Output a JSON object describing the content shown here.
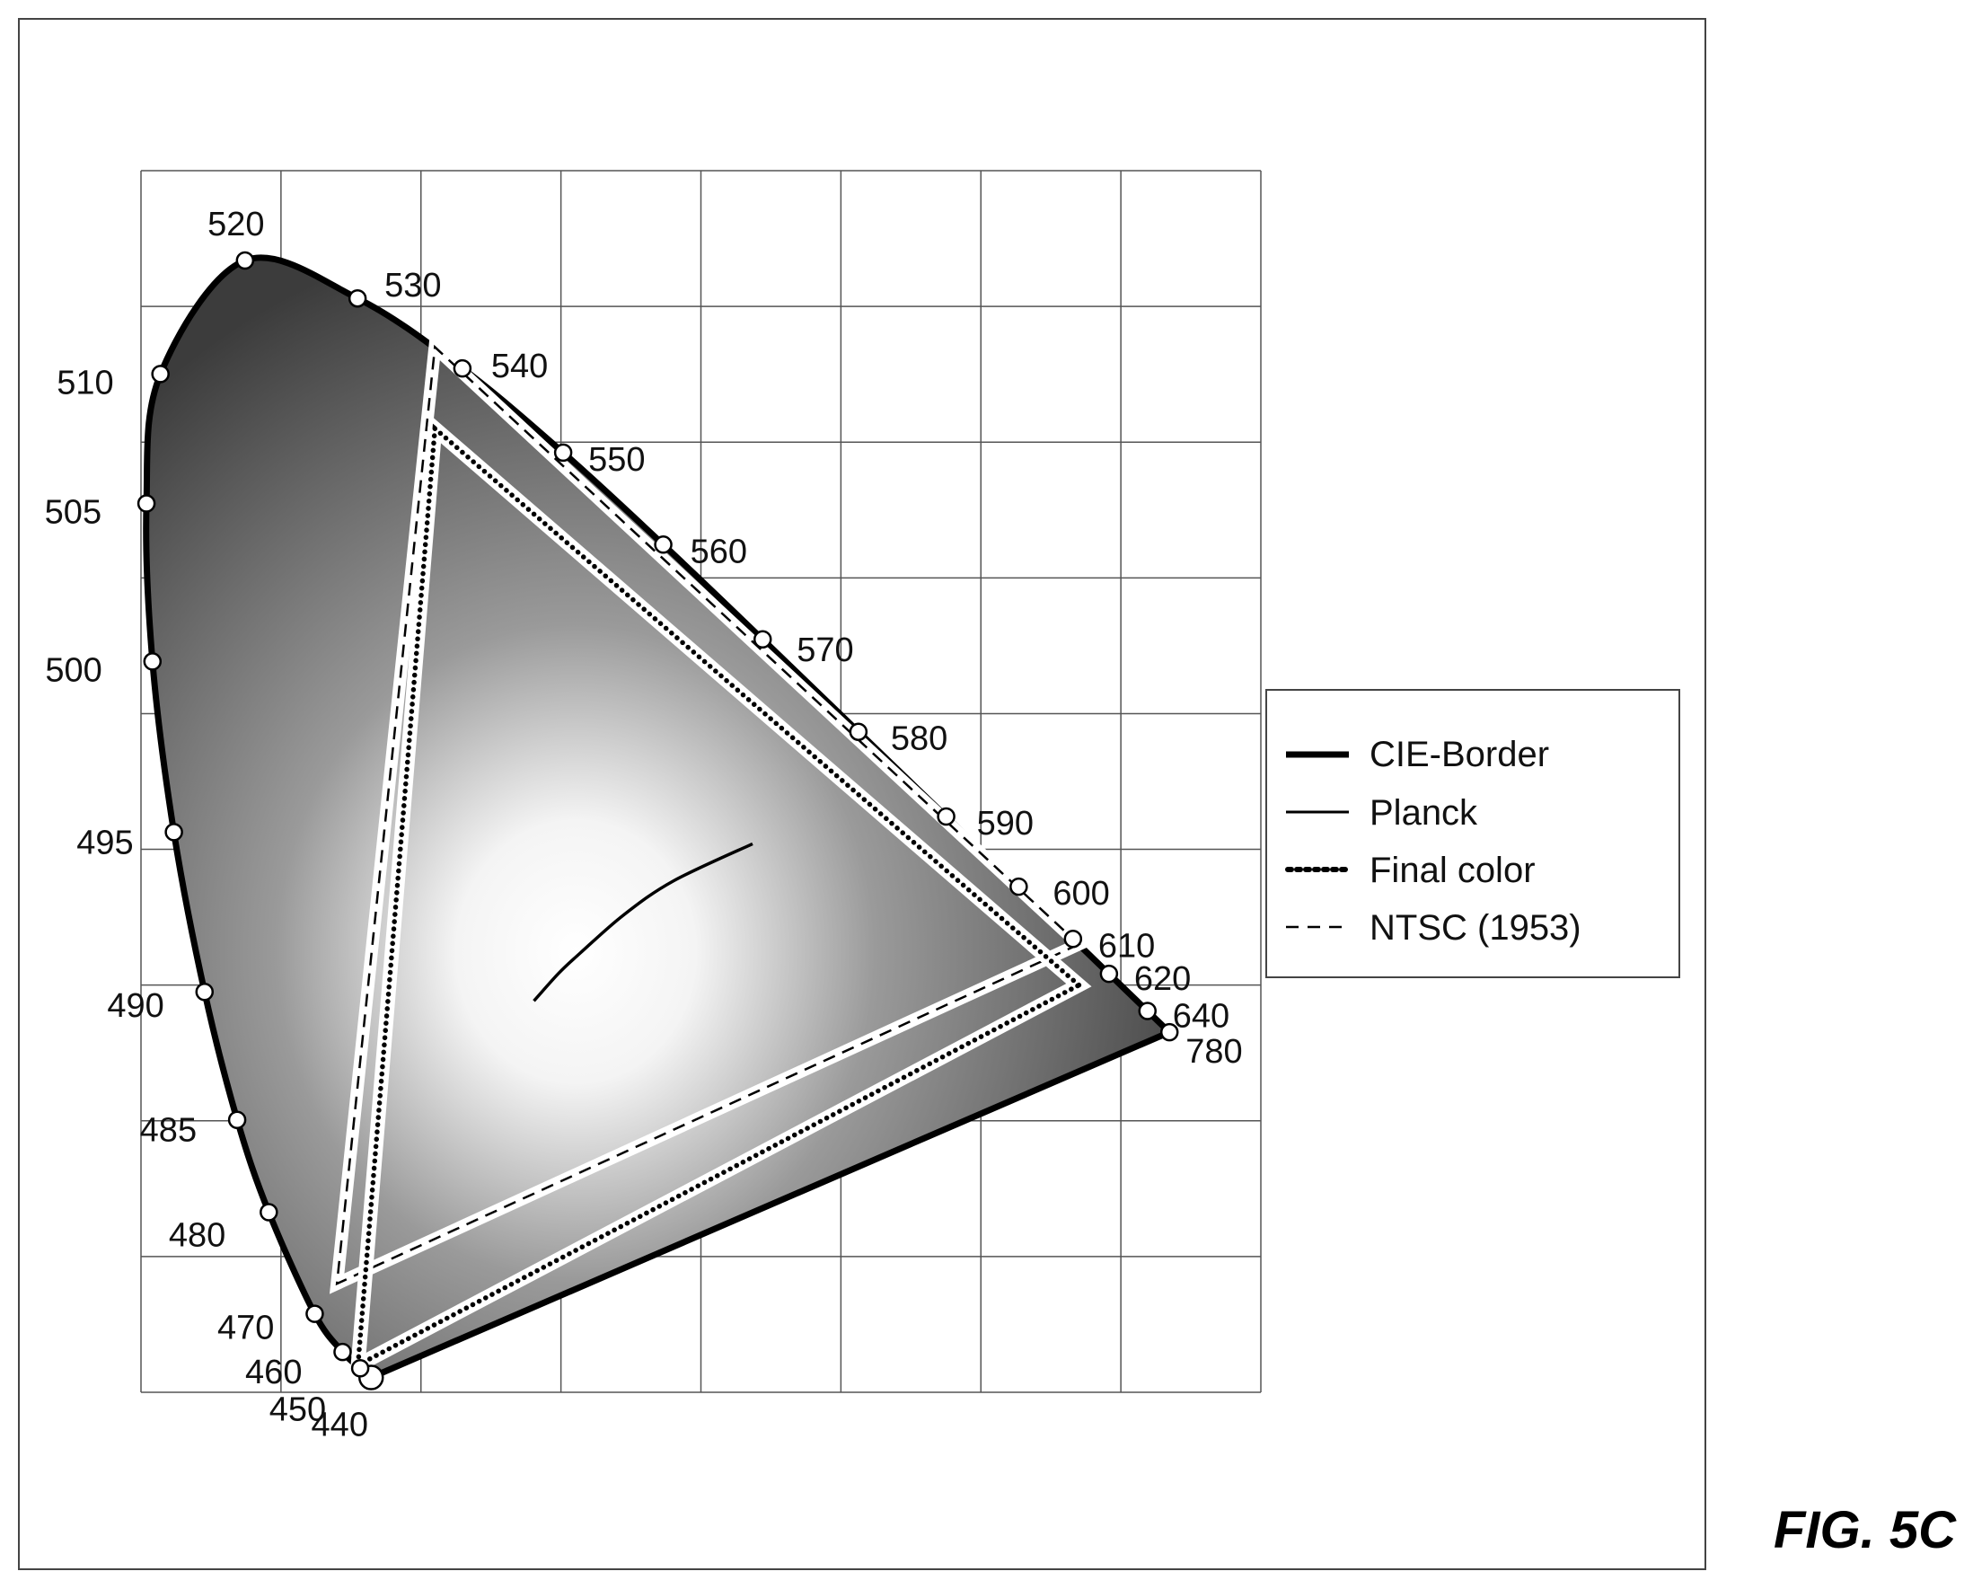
{
  "figure_label": "FIG. 5C",
  "chart_data": {
    "type": "line",
    "grid": true,
    "xlim": [
      0,
      0.8
    ],
    "ylim": [
      0,
      0.9
    ],
    "grid_step": 0.1,
    "colors": {
      "cie_border": "#000000",
      "planck": "#000000",
      "final_color": "#000000",
      "ntsc": "#000000",
      "fill_dark": "#3c3c3c",
      "fill_light": "#ffffff"
    },
    "legend": {
      "position": "right",
      "entries": [
        {
          "label": "CIE-Border",
          "style": "thick-solid"
        },
        {
          "label": "Planck",
          "style": "thin-solid"
        },
        {
          "label": "Final color",
          "style": "dotted"
        },
        {
          "label": "NTSC (1953)",
          "style": "dashed"
        }
      ]
    },
    "spectral_locus": [
      {
        "wl": "440",
        "x": 0.1644,
        "y": 0.0109
      },
      {
        "wl": "450",
        "x": 0.1566,
        "y": 0.0177
      },
      {
        "wl": "460",
        "x": 0.144,
        "y": 0.0297
      },
      {
        "wl": "470",
        "x": 0.1241,
        "y": 0.0578
      },
      {
        "wl": "480",
        "x": 0.0913,
        "y": 0.1327
      },
      {
        "wl": "485",
        "x": 0.0687,
        "y": 0.2007
      },
      {
        "wl": "490",
        "x": 0.0454,
        "y": 0.295
      },
      {
        "wl": "495",
        "x": 0.0235,
        "y": 0.4127
      },
      {
        "wl": "500",
        "x": 0.0082,
        "y": 0.5384
      },
      {
        "wl": "505",
        "x": 0.0039,
        "y": 0.6548
      },
      {
        "wl": "510",
        "x": 0.0139,
        "y": 0.7502
      },
      {
        "wl": "520",
        "x": 0.0743,
        "y": 0.8338
      },
      {
        "wl": "530",
        "x": 0.1547,
        "y": 0.8059
      },
      {
        "wl": "540",
        "x": 0.2296,
        "y": 0.7543
      },
      {
        "wl": "550",
        "x": 0.3016,
        "y": 0.6923
      },
      {
        "wl": "560",
        "x": 0.3731,
        "y": 0.6245
      },
      {
        "wl": "570",
        "x": 0.4441,
        "y": 0.5547
      },
      {
        "wl": "580",
        "x": 0.5125,
        "y": 0.4866
      },
      {
        "wl": "590",
        "x": 0.5752,
        "y": 0.4242
      },
      {
        "wl": "600",
        "x": 0.627,
        "y": 0.3725
      },
      {
        "wl": "610",
        "x": 0.6658,
        "y": 0.334
      },
      {
        "wl": "620",
        "x": 0.6915,
        "y": 0.3083
      },
      {
        "wl": "640",
        "x": 0.719,
        "y": 0.2809
      },
      {
        "wl": "780",
        "x": 0.7347,
        "y": 0.2653
      }
    ],
    "planck": [
      {
        "x": 0.2807,
        "y": 0.2883
      },
      {
        "x": 0.2986,
        "y": 0.3089
      },
      {
        "x": 0.3138,
        "y": 0.3236
      },
      {
        "x": 0.3447,
        "y": 0.3516
      },
      {
        "x": 0.3805,
        "y": 0.3768
      },
      {
        "x": 0.4369,
        "y": 0.4041
      }
    ],
    "final_color": [
      {
        "x": 0.67,
        "y": 0.3
      },
      {
        "x": 0.21,
        "y": 0.71
      },
      {
        "x": 0.155,
        "y": 0.02
      }
    ],
    "ntsc": [
      {
        "x": 0.67,
        "y": 0.33
      },
      {
        "x": 0.21,
        "y": 0.77
      },
      {
        "x": 0.14,
        "y": 0.08
      }
    ]
  }
}
